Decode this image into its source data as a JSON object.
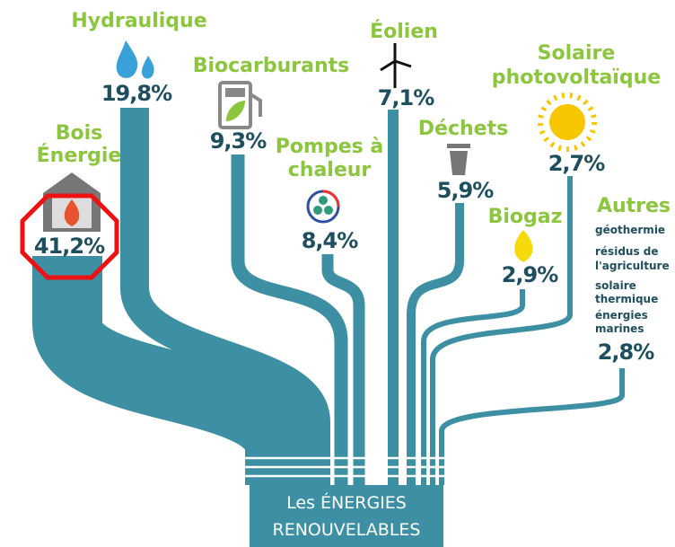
{
  "nodes": [
    {
      "label_lines": [
        "Hydraulique"
      ],
      "share": "19,8%"
    },
    {
      "label_lines": [
        "Bois",
        "Énergie"
      ],
      "share": "41,2%"
    },
    {
      "label_lines": [
        "Biocarburants"
      ],
      "share": "9,3%"
    },
    {
      "label_lines": [
        "Pompes à",
        "chaleur"
      ],
      "share": "8,4%"
    },
    {
      "label_lines": [
        "Éolien"
      ],
      "share": "7,1%"
    },
    {
      "label_lines": [
        "Déchets"
      ],
      "share": "5,9%"
    },
    {
      "label_lines": [
        "Biogaz"
      ],
      "share": "2,9%"
    },
    {
      "label_lines": [
        "Solaire",
        "photovoltaïque"
      ],
      "share": "2,7%"
    }
  ],
  "autres": {
    "label": "Autres",
    "item_lines": [
      "géothermie",
      "résidus de",
      "l'agriculture",
      "solaire",
      "thermique",
      "énergies",
      "marines"
    ],
    "share": "2,8%"
  },
  "center": {
    "lines": [
      "Les ÉNERGIES",
      "RENOUVELABLES"
    ]
  }
}
